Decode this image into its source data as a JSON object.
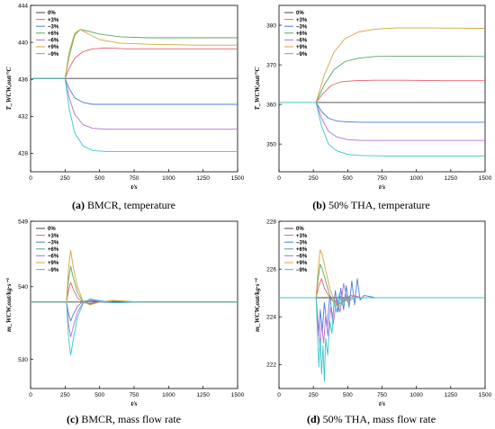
{
  "legend_entries": [
    "0%",
    "+3%",
    "−3%",
    "+6%",
    "−6%",
    "+9%",
    "−9%"
  ],
  "colors": {
    "0%": "#404040",
    "+3%": "#e8606a",
    "-3%": "#4a7fd8",
    "+6%": "#5aa563",
    "-6%": "#b66fd4",
    "+9%": "#d4a53a",
    "-9%": "#38c7c9"
  },
  "captions": [
    {
      "letter": "(a)",
      "text": " BMCR, temperature"
    },
    {
      "letter": "(b)",
      "text": " 50% THA, temperature"
    },
    {
      "letter": "(c)",
      "text": " BMCR, mass flow rate"
    },
    {
      "letter": "(d)",
      "text": " 50% THA, mass flow rate"
    }
  ],
  "chart_data": [
    {
      "type": "line",
      "panel": "a",
      "xlabel": "t/s",
      "ylabel": "T_WCW,out/°C",
      "xlim": [
        0,
        1500
      ],
      "ylim": [
        426,
        444
      ],
      "xticks": [
        0,
        250,
        500,
        750,
        1000,
        1250,
        1500
      ],
      "yticks": [
        428,
        432,
        436,
        440,
        444
      ],
      "legend_position": "top-left",
      "step_time": 250,
      "series": [
        {
          "name": "0%",
          "x": [
            0,
            250,
            1500
          ],
          "y": [
            436.1,
            436.1,
            436.1
          ]
        },
        {
          "name": "+3%",
          "x": [
            0,
            250,
            280,
            320,
            380,
            450,
            550,
            700,
            900,
            1200,
            1500
          ],
          "y": [
            436.1,
            436.1,
            437.2,
            438.3,
            439.0,
            439.3,
            439.4,
            439.3,
            439.3,
            439.3,
            439.3
          ]
        },
        {
          "name": "−3%",
          "x": [
            0,
            250,
            280,
            320,
            380,
            450,
            550,
            700,
            900,
            1200,
            1500
          ],
          "y": [
            436.1,
            436.1,
            435.0,
            434.0,
            433.5,
            433.3,
            433.3,
            433.3,
            433.3,
            433.3,
            433.3
          ]
        },
        {
          "name": "+6%",
          "x": [
            0,
            250,
            280,
            320,
            360,
            420,
            500,
            650,
            850,
            1200,
            1500
          ],
          "y": [
            436.1,
            436.1,
            438.5,
            440.8,
            441.4,
            441.2,
            440.9,
            440.6,
            440.5,
            440.5,
            440.5
          ]
        },
        {
          "name": "−6%",
          "x": [
            0,
            250,
            280,
            320,
            380,
            450,
            550,
            700,
            900,
            1200,
            1500
          ],
          "y": [
            436.1,
            436.1,
            434.0,
            432.2,
            431.1,
            430.7,
            430.6,
            430.6,
            430.6,
            430.6,
            430.6
          ]
        },
        {
          "name": "+9%",
          "x": [
            0,
            250,
            280,
            320,
            360,
            420,
            500,
            650,
            850,
            1200,
            1500
          ],
          "y": [
            436.1,
            436.1,
            439.0,
            441.0,
            441.4,
            440.9,
            440.3,
            439.9,
            439.8,
            439.7,
            439.7
          ]
        },
        {
          "name": "−9%",
          "x": [
            0,
            250,
            280,
            320,
            380,
            450,
            550,
            700,
            900,
            1200,
            1500
          ],
          "y": [
            436.1,
            436.1,
            432.8,
            430.2,
            428.8,
            428.3,
            428.2,
            428.2,
            428.2,
            428.2,
            428.2
          ]
        }
      ]
    },
    {
      "type": "line",
      "panel": "b",
      "xlabel": "t/s",
      "ylabel": "T_WCW,out/°C",
      "xlim": [
        0,
        1500
      ],
      "ylim": [
        343,
        385
      ],
      "xticks": [
        0,
        250,
        500,
        750,
        1000,
        1250,
        1500
      ],
      "yticks": [
        350,
        360,
        370,
        380
      ],
      "legend_position": "top-left",
      "step_time": 270,
      "series": [
        {
          "name": "0%",
          "x": [
            0,
            1500
          ],
          "y": [
            360.5,
            360.5
          ]
        },
        {
          "name": "+3%",
          "x": [
            0,
            270,
            320,
            380,
            450,
            550,
            700,
            900,
            1200,
            1500
          ],
          "y": [
            360.5,
            360.5,
            362.8,
            364.8,
            365.7,
            366.0,
            366.1,
            366.1,
            366.0,
            366.0
          ]
        },
        {
          "name": "−3%",
          "x": [
            0,
            270,
            310,
            360,
            420,
            500,
            600,
            800,
            1100,
            1500
          ],
          "y": [
            360.5,
            360.5,
            358.2,
            356.5,
            355.8,
            355.6,
            355.5,
            355.5,
            355.5,
            355.5
          ]
        },
        {
          "name": "+6%",
          "x": [
            0,
            270,
            330,
            400,
            480,
            580,
            700,
            900,
            1200,
            1500
          ],
          "y": [
            360.5,
            360.5,
            365.0,
            368.8,
            370.8,
            371.7,
            372.1,
            372.2,
            372.2,
            372.1
          ]
        },
        {
          "name": "−6%",
          "x": [
            0,
            270,
            310,
            360,
            420,
            500,
            600,
            800,
            1100,
            1500
          ],
          "y": [
            360.5,
            360.5,
            356.5,
            353.2,
            351.8,
            351.1,
            350.9,
            350.9,
            350.9,
            350.9
          ]
        },
        {
          "name": "+9%",
          "x": [
            0,
            270,
            330,
            400,
            480,
            580,
            700,
            850,
            1100,
            1500
          ],
          "y": [
            360.5,
            360.5,
            367.5,
            373.2,
            376.6,
            378.3,
            379.0,
            379.3,
            379.3,
            379.2
          ]
        },
        {
          "name": "−9%",
          "x": [
            0,
            270,
            310,
            360,
            420,
            500,
            600,
            800,
            1100,
            1500
          ],
          "y": [
            360.5,
            360.5,
            354.5,
            350.0,
            348.3,
            347.4,
            347.1,
            347.0,
            347.0,
            347.0
          ]
        }
      ]
    },
    {
      "type": "line",
      "panel": "c",
      "xlabel": "t/s",
      "ylabel": "m_WCW,out/kg·s⁻¹",
      "xlim": [
        0,
        1500
      ],
      "ylim": [
        526,
        549
      ],
      "xticks": [
        0,
        250,
        500,
        750,
        1000,
        1250,
        1500
      ],
      "yticks": [
        530,
        540,
        549
      ],
      "legend_position": "top-left",
      "step_time": 260,
      "series": [
        {
          "name": "0%",
          "x": [
            0,
            1500
          ],
          "y": [
            537.9,
            537.9
          ]
        },
        {
          "name": "+3%",
          "x": [
            0,
            260,
            275,
            290,
            310,
            340,
            380,
            430,
            500,
            600,
            800,
            1500
          ],
          "y": [
            537.9,
            537.9,
            539.5,
            540.6,
            539.6,
            538.5,
            537.8,
            537.7,
            537.9,
            538.0,
            537.9,
            537.9
          ]
        },
        {
          "name": "−3%",
          "x": [
            0,
            260,
            275,
            290,
            310,
            340,
            380,
            430,
            500,
            600,
            800,
            1500
          ],
          "y": [
            537.9,
            537.9,
            536.3,
            535.3,
            536.2,
            537.3,
            538.0,
            538.1,
            537.9,
            537.8,
            537.9,
            537.9
          ]
        },
        {
          "name": "+6%",
          "x": [
            0,
            260,
            275,
            290,
            310,
            340,
            380,
            430,
            500,
            600,
            800,
            1500
          ],
          "y": [
            537.9,
            537.9,
            541.0,
            542.8,
            541.2,
            539.2,
            537.9,
            537.6,
            537.9,
            538.1,
            537.9,
            537.9
          ]
        },
        {
          "name": "−6%",
          "x": [
            0,
            260,
            275,
            290,
            310,
            340,
            380,
            430,
            500,
            600,
            800,
            1500
          ],
          "y": [
            537.9,
            537.9,
            534.8,
            533.1,
            534.5,
            536.5,
            537.8,
            538.2,
            538.0,
            537.8,
            537.9,
            537.9
          ]
        },
        {
          "name": "+9%",
          "x": [
            0,
            260,
            275,
            290,
            310,
            340,
            380,
            430,
            500,
            600,
            800,
            1500
          ],
          "y": [
            537.9,
            537.9,
            542.6,
            545.0,
            542.6,
            540.0,
            538.0,
            537.5,
            537.9,
            538.1,
            537.9,
            537.9
          ]
        },
        {
          "name": "−9%",
          "x": [
            0,
            260,
            275,
            290,
            310,
            340,
            380,
            430,
            500,
            600,
            800,
            1500
          ],
          "y": [
            537.9,
            537.9,
            533.0,
            530.6,
            532.8,
            535.8,
            537.7,
            538.3,
            538.1,
            537.8,
            537.9,
            537.9
          ]
        }
      ]
    },
    {
      "type": "line",
      "panel": "d",
      "xlabel": "t/s",
      "ylabel": "m_WCW,out/kg·s⁻¹",
      "xlim": [
        0,
        1500
      ],
      "ylim": [
        221,
        228
      ],
      "xticks": [
        0,
        250,
        500,
        750,
        1000,
        1250,
        1500
      ],
      "yticks": [
        222,
        224,
        226,
        228
      ],
      "legend_position": "top-left",
      "step_time": 270,
      "series": [
        {
          "name": "0%",
          "x": [
            0,
            1500
          ],
          "y": [
            224.8,
            224.8
          ]
        },
        {
          "name": "+3%",
          "x": [
            0,
            270,
            290,
            310,
            330,
            360,
            400,
            440,
            480,
            520,
            600,
            750,
            1000,
            1500
          ],
          "y": [
            224.8,
            224.8,
            225.3,
            225.6,
            225.2,
            224.9,
            224.6,
            224.9,
            224.7,
            224.9,
            224.8,
            224.8,
            224.8,
            224.8
          ]
        },
        {
          "name": "−3%",
          "x": [
            0,
            270,
            280,
            290,
            300,
            315,
            330,
            350,
            370,
            390,
            410,
            430,
            450,
            470,
            490,
            510,
            530,
            550,
            570,
            590,
            620,
            700,
            900,
            1500
          ],
          "y": [
            224.8,
            224.8,
            224.0,
            223.2,
            224.3,
            223.4,
            224.6,
            223.6,
            224.9,
            223.9,
            225.1,
            224.2,
            225.2,
            224.3,
            225.3,
            224.4,
            225.5,
            224.5,
            225.6,
            224.7,
            224.9,
            224.8,
            224.8,
            224.8
          ]
        },
        {
          "name": "+6%",
          "x": [
            0,
            270,
            285,
            300,
            315,
            330,
            350,
            370,
            400,
            430,
            470,
            520,
            600,
            800,
            1500
          ],
          "y": [
            224.8,
            224.8,
            225.6,
            226.2,
            226.0,
            225.7,
            225.3,
            224.9,
            224.6,
            224.5,
            224.7,
            224.8,
            224.8,
            224.8,
            224.8
          ]
        },
        {
          "name": "−6%",
          "x": [
            0,
            270,
            285,
            300,
            310,
            325,
            340,
            355,
            375,
            395,
            420,
            445,
            470,
            500,
            540,
            600,
            700,
            1500
          ],
          "y": [
            224.8,
            224.8,
            223.8,
            222.6,
            223.8,
            222.9,
            224.1,
            223.2,
            224.4,
            223.7,
            224.8,
            224.2,
            225.4,
            224.6,
            224.9,
            224.8,
            224.8,
            224.8
          ]
        },
        {
          "name": "+9%",
          "x": [
            0,
            270,
            285,
            300,
            315,
            330,
            350,
            370,
            400,
            430,
            470,
            520,
            600,
            800,
            1500
          ],
          "y": [
            224.8,
            224.8,
            226.0,
            226.8,
            226.6,
            226.2,
            225.7,
            225.2,
            224.7,
            224.4,
            224.6,
            224.8,
            224.8,
            224.8,
            224.8
          ]
        },
        {
          "name": "−9%",
          "x": [
            0,
            270,
            280,
            290,
            300,
            310,
            320,
            330,
            340,
            355,
            370,
            385,
            400,
            420,
            440,
            460,
            490,
            520,
            560,
            620,
            700,
            1500
          ],
          "y": [
            224.8,
            224.8,
            223.4,
            221.9,
            223.1,
            221.6,
            222.8,
            221.3,
            223.1,
            222.4,
            223.8,
            223.3,
            224.6,
            224.2,
            225.0,
            224.5,
            224.9,
            224.7,
            224.8,
            224.8,
            224.8,
            224.8
          ]
        }
      ]
    }
  ]
}
